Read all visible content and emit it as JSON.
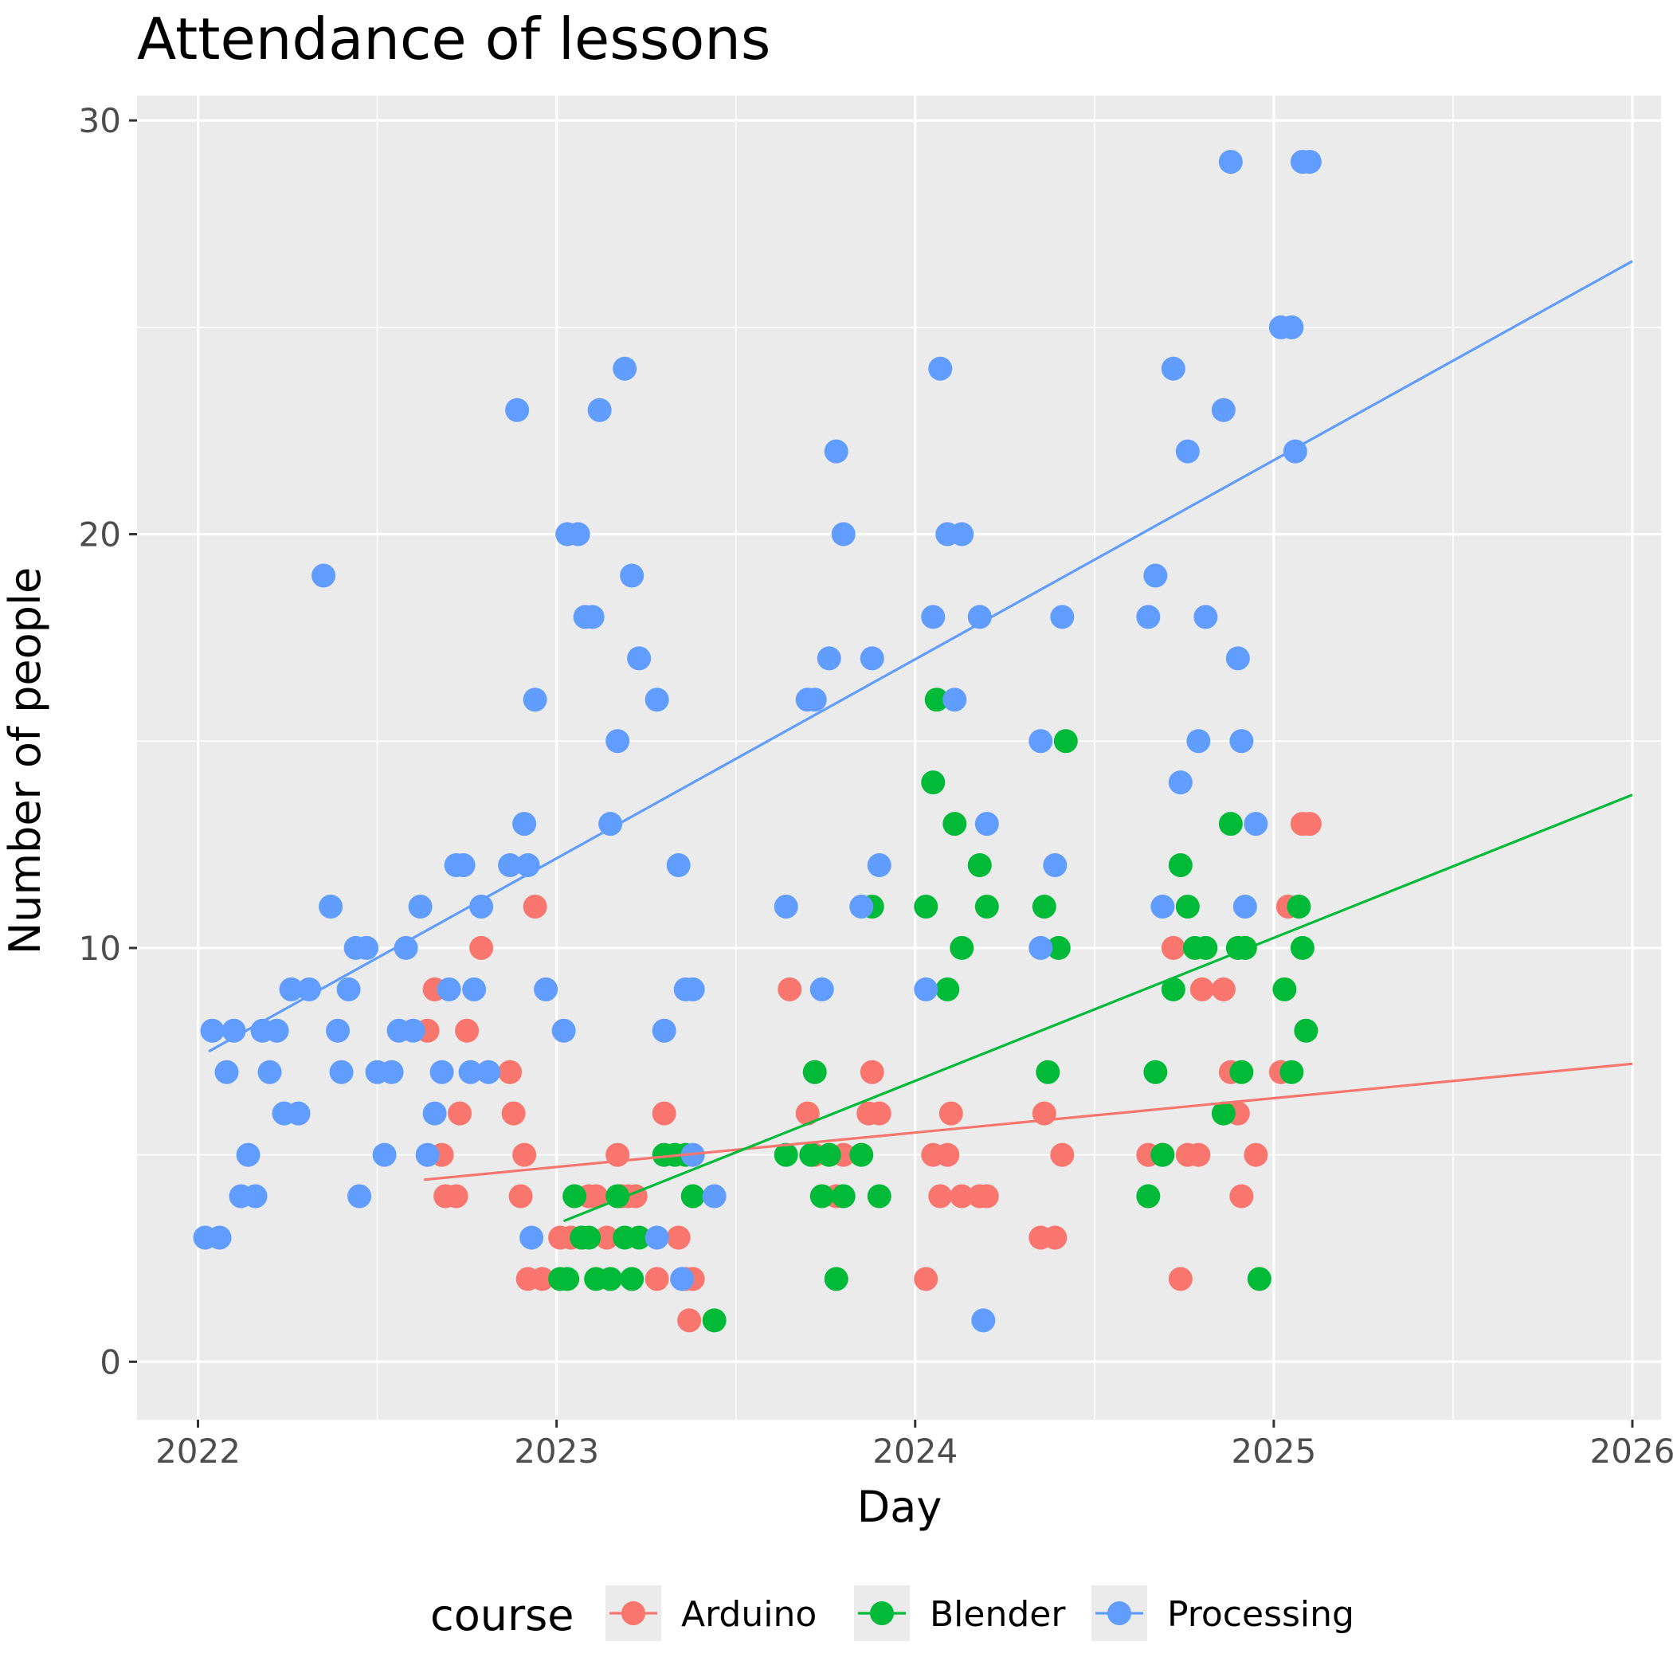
{
  "chart_data": {
    "type": "scatter",
    "title": "Attendance of lessons",
    "xlabel": "Day",
    "ylabel": "Number of people",
    "x_ticks": [
      "2022",
      "2023",
      "2024",
      "2025",
      "2026"
    ],
    "y_ticks": [
      "0",
      "10",
      "20",
      "30"
    ],
    "xlim": [
      2021.83,
      2026.08
    ],
    "ylim": [
      -1.4,
      30.6
    ],
    "grid": true,
    "legend": {
      "title": "course",
      "position": "bottom"
    },
    "series": [
      {
        "name": "Arduino",
        "color": "#F8766D",
        "trend": [
          [
            2022.63,
            4.4
          ],
          [
            2026.0,
            7.2
          ]
        ],
        "points": [
          [
            2022.64,
            8
          ],
          [
            2022.66,
            9
          ],
          [
            2022.68,
            5
          ],
          [
            2022.69,
            4
          ],
          [
            2022.72,
            4
          ],
          [
            2022.73,
            6
          ],
          [
            2022.75,
            8
          ],
          [
            2022.79,
            10
          ],
          [
            2022.87,
            7
          ],
          [
            2022.88,
            6
          ],
          [
            2022.9,
            4
          ],
          [
            2022.91,
            5
          ],
          [
            2022.92,
            2
          ],
          [
            2022.94,
            11
          ],
          [
            2022.96,
            2
          ],
          [
            2023.01,
            3
          ],
          [
            2023.04,
            3
          ],
          [
            2023.07,
            3
          ],
          [
            2023.09,
            4
          ],
          [
            2023.11,
            4
          ],
          [
            2023.14,
            3
          ],
          [
            2023.17,
            5
          ],
          [
            2023.18,
            4
          ],
          [
            2023.2,
            4
          ],
          [
            2023.22,
            4
          ],
          [
            2023.28,
            2
          ],
          [
            2023.3,
            6
          ],
          [
            2023.34,
            3
          ],
          [
            2023.36,
            2
          ],
          [
            2023.37,
            1
          ],
          [
            2023.38,
            2
          ],
          [
            2023.65,
            9
          ],
          [
            2023.7,
            6
          ],
          [
            2023.72,
            5
          ],
          [
            2023.78,
            4
          ],
          [
            2023.8,
            5
          ],
          [
            2023.87,
            6
          ],
          [
            2023.88,
            7
          ],
          [
            2023.9,
            6
          ],
          [
            2024.03,
            2
          ],
          [
            2024.05,
            5
          ],
          [
            2024.07,
            4
          ],
          [
            2024.09,
            5
          ],
          [
            2024.1,
            6
          ],
          [
            2024.13,
            4
          ],
          [
            2024.18,
            4
          ],
          [
            2024.2,
            4
          ],
          [
            2024.35,
            3
          ],
          [
            2024.36,
            6
          ],
          [
            2024.39,
            3
          ],
          [
            2024.41,
            5
          ],
          [
            2024.65,
            5
          ],
          [
            2024.69,
            5
          ],
          [
            2024.72,
            10
          ],
          [
            2024.74,
            2
          ],
          [
            2024.76,
            5
          ],
          [
            2024.79,
            5
          ],
          [
            2024.8,
            9
          ],
          [
            2024.86,
            9
          ],
          [
            2024.88,
            7
          ],
          [
            2024.9,
            6
          ],
          [
            2024.91,
            4
          ],
          [
            2024.95,
            5
          ],
          [
            2025.02,
            7
          ],
          [
            2025.04,
            11
          ],
          [
            2025.08,
            13
          ],
          [
            2025.1,
            13
          ]
        ]
      },
      {
        "name": "Blender",
        "color": "#00BA38",
        "trend": [
          [
            2023.02,
            3.4
          ],
          [
            2026.0,
            13.7
          ]
        ],
        "points": [
          [
            2023.01,
            2
          ],
          [
            2023.03,
            2
          ],
          [
            2023.05,
            4
          ],
          [
            2023.07,
            3
          ],
          [
            2023.09,
            3
          ],
          [
            2023.11,
            2
          ],
          [
            2023.15,
            2
          ],
          [
            2023.17,
            4
          ],
          [
            2023.19,
            3
          ],
          [
            2023.21,
            2
          ],
          [
            2023.23,
            3
          ],
          [
            2023.3,
            5
          ],
          [
            2023.33,
            5
          ],
          [
            2023.36,
            5
          ],
          [
            2023.38,
            4
          ],
          [
            2023.44,
            1
          ],
          [
            2023.64,
            5
          ],
          [
            2023.71,
            5
          ],
          [
            2023.72,
            7
          ],
          [
            2023.74,
            4
          ],
          [
            2023.76,
            5
          ],
          [
            2023.78,
            2
          ],
          [
            2023.8,
            4
          ],
          [
            2023.85,
            5
          ],
          [
            2023.88,
            11
          ],
          [
            2023.9,
            4
          ],
          [
            2024.03,
            11
          ],
          [
            2024.05,
            14
          ],
          [
            2024.06,
            16
          ],
          [
            2024.09,
            9
          ],
          [
            2024.11,
            13
          ],
          [
            2024.13,
            10
          ],
          [
            2024.18,
            12
          ],
          [
            2024.2,
            11
          ],
          [
            2024.36,
            11
          ],
          [
            2024.37,
            7
          ],
          [
            2024.4,
            10
          ],
          [
            2024.42,
            15
          ],
          [
            2024.65,
            4
          ],
          [
            2024.67,
            7
          ],
          [
            2024.69,
            5
          ],
          [
            2024.72,
            9
          ],
          [
            2024.74,
            12
          ],
          [
            2024.76,
            11
          ],
          [
            2024.78,
            10
          ],
          [
            2024.81,
            10
          ],
          [
            2024.86,
            6
          ],
          [
            2024.88,
            13
          ],
          [
            2024.9,
            10
          ],
          [
            2024.91,
            7
          ],
          [
            2024.92,
            10
          ],
          [
            2024.96,
            2
          ],
          [
            2025.03,
            9
          ],
          [
            2025.05,
            7
          ],
          [
            2025.07,
            11
          ],
          [
            2025.08,
            10
          ],
          [
            2025.09,
            8
          ]
        ]
      },
      {
        "name": "Processing",
        "color": "#619CFF",
        "trend": [
          [
            2022.03,
            7.5
          ],
          [
            2026.0,
            26.6
          ]
        ],
        "points": [
          [
            2022.02,
            3
          ],
          [
            2022.04,
            8
          ],
          [
            2022.06,
            3
          ],
          [
            2022.08,
            7
          ],
          [
            2022.1,
            8
          ],
          [
            2022.12,
            4
          ],
          [
            2022.14,
            5
          ],
          [
            2022.16,
            4
          ],
          [
            2022.18,
            8
          ],
          [
            2022.2,
            7
          ],
          [
            2022.22,
            8
          ],
          [
            2022.24,
            6
          ],
          [
            2022.26,
            9
          ],
          [
            2022.28,
            6
          ],
          [
            2022.31,
            9
          ],
          [
            2022.35,
            19
          ],
          [
            2022.37,
            11
          ],
          [
            2022.39,
            8
          ],
          [
            2022.4,
            7
          ],
          [
            2022.42,
            9
          ],
          [
            2022.44,
            10
          ],
          [
            2022.45,
            4
          ],
          [
            2022.47,
            10
          ],
          [
            2022.5,
            7
          ],
          [
            2022.52,
            5
          ],
          [
            2022.54,
            7
          ],
          [
            2022.56,
            8
          ],
          [
            2022.58,
            10
          ],
          [
            2022.6,
            8
          ],
          [
            2022.62,
            11
          ],
          [
            2022.64,
            5
          ],
          [
            2022.66,
            6
          ],
          [
            2022.68,
            7
          ],
          [
            2022.7,
            9
          ],
          [
            2022.72,
            12
          ],
          [
            2022.74,
            12
          ],
          [
            2022.76,
            7
          ],
          [
            2022.77,
            9
          ],
          [
            2022.79,
            11
          ],
          [
            2022.81,
            7
          ],
          [
            2022.87,
            12
          ],
          [
            2022.89,
            23
          ],
          [
            2022.91,
            13
          ],
          [
            2022.92,
            12
          ],
          [
            2022.93,
            3
          ],
          [
            2022.94,
            16
          ],
          [
            2022.97,
            9
          ],
          [
            2023.02,
            8
          ],
          [
            2023.03,
            20
          ],
          [
            2023.06,
            20
          ],
          [
            2023.08,
            18
          ],
          [
            2023.1,
            18
          ],
          [
            2023.12,
            23
          ],
          [
            2023.15,
            13
          ],
          [
            2023.17,
            15
          ],
          [
            2023.19,
            24
          ],
          [
            2023.21,
            19
          ],
          [
            2023.23,
            17
          ],
          [
            2023.28,
            16
          ],
          [
            2023.28,
            3
          ],
          [
            2023.3,
            8
          ],
          [
            2023.34,
            12
          ],
          [
            2023.35,
            2
          ],
          [
            2023.36,
            9
          ],
          [
            2023.38,
            9
          ],
          [
            2023.38,
            5
          ],
          [
            2023.44,
            4
          ],
          [
            2023.64,
            11
          ],
          [
            2023.7,
            16
          ],
          [
            2023.72,
            16
          ],
          [
            2023.74,
            9
          ],
          [
            2023.76,
            17
          ],
          [
            2023.78,
            22
          ],
          [
            2023.8,
            20
          ],
          [
            2023.85,
            11
          ],
          [
            2023.88,
            17
          ],
          [
            2023.9,
            12
          ],
          [
            2024.03,
            9
          ],
          [
            2024.05,
            18
          ],
          [
            2024.07,
            24
          ],
          [
            2024.09,
            20
          ],
          [
            2024.11,
            16
          ],
          [
            2024.13,
            20
          ],
          [
            2024.18,
            18
          ],
          [
            2024.19,
            1
          ],
          [
            2024.2,
            13
          ],
          [
            2024.35,
            15
          ],
          [
            2024.35,
            10
          ],
          [
            2024.39,
            12
          ],
          [
            2024.41,
            18
          ],
          [
            2024.65,
            18
          ],
          [
            2024.67,
            19
          ],
          [
            2024.69,
            11
          ],
          [
            2024.72,
            24
          ],
          [
            2024.74,
            14
          ],
          [
            2024.76,
            22
          ],
          [
            2024.79,
            15
          ],
          [
            2024.81,
            18
          ],
          [
            2024.86,
            23
          ],
          [
            2024.88,
            29
          ],
          [
            2024.9,
            17
          ],
          [
            2024.91,
            15
          ],
          [
            2024.92,
            11
          ],
          [
            2024.95,
            13
          ],
          [
            2025.02,
            25
          ],
          [
            2025.05,
            25
          ],
          [
            2025.06,
            22
          ],
          [
            2025.08,
            29
          ],
          [
            2025.1,
            29
          ]
        ]
      }
    ]
  }
}
